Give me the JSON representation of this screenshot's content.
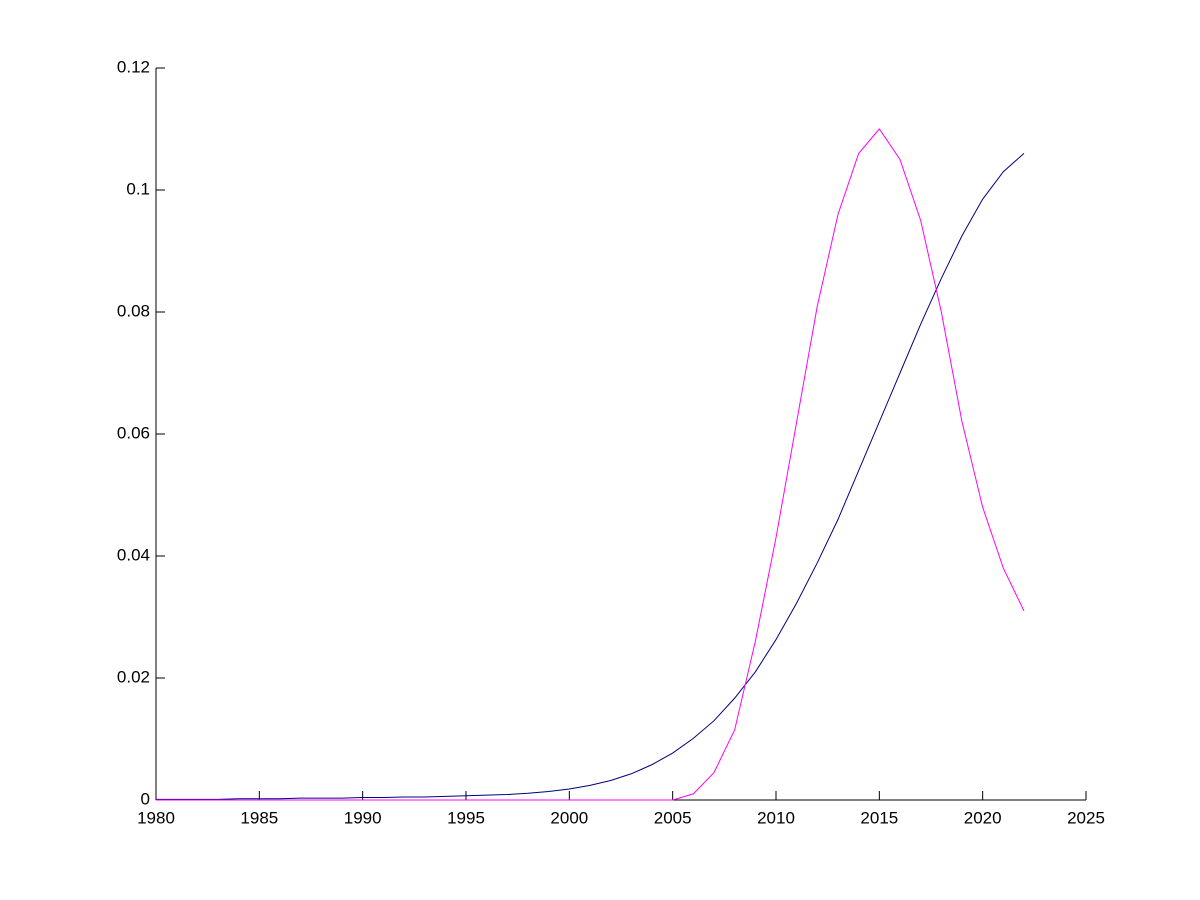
{
  "chart_data": {
    "type": "line",
    "x": [
      1980,
      1981,
      1982,
      1983,
      1984,
      1985,
      1986,
      1987,
      1988,
      1989,
      1990,
      1991,
      1992,
      1993,
      1994,
      1995,
      1996,
      1997,
      1998,
      1999,
      2000,
      2001,
      2002,
      2003,
      2004,
      2005,
      2006,
      2007,
      2008,
      2009,
      2010,
      2011,
      2012,
      2013,
      2014,
      2015,
      2016,
      2017,
      2018,
      2019,
      2020,
      2021,
      2022
    ],
    "series": [
      {
        "color": "#00007f",
        "values": [
          0.0001,
          0.0001,
          0.0001,
          0.0001,
          0.0002,
          0.0002,
          0.0002,
          0.0003,
          0.0003,
          0.0003,
          0.0004,
          0.0004,
          0.0005,
          0.0005,
          0.0006,
          0.0007,
          0.0008,
          0.0009,
          0.0011,
          0.0014,
          0.0018,
          0.0024,
          0.0032,
          0.0043,
          0.0058,
          0.0077,
          0.0101,
          0.013,
          0.0167,
          0.021,
          0.0263,
          0.0323,
          0.0389,
          0.046,
          0.054,
          0.062,
          0.07,
          0.078,
          0.0855,
          0.0925,
          0.0985,
          0.103,
          0.106
        ]
      },
      {
        "color": "#ff00ff",
        "values": [
          0,
          0,
          0,
          0,
          0,
          0,
          0,
          0,
          0,
          0,
          0,
          0,
          0,
          0,
          0,
          0,
          0,
          0,
          0,
          0,
          0,
          0,
          0,
          0,
          0,
          0,
          0.001,
          0.0045,
          0.0115,
          0.026,
          0.043,
          0.062,
          0.081,
          0.096,
          0.106,
          0.11,
          0.105,
          0.095,
          0.08,
          0.062,
          0.048,
          0.038,
          0.031
        ]
      }
    ],
    "xlim": [
      1980,
      2025
    ],
    "xticks": [
      1980,
      1985,
      1990,
      1995,
      2000,
      2005,
      2010,
      2015,
      2020,
      2025
    ],
    "ylim": [
      0,
      0.12
    ],
    "yticks": [
      0,
      0.02,
      0.04,
      0.06,
      0.08,
      0.1,
      0.12
    ],
    "grid": false
  }
}
